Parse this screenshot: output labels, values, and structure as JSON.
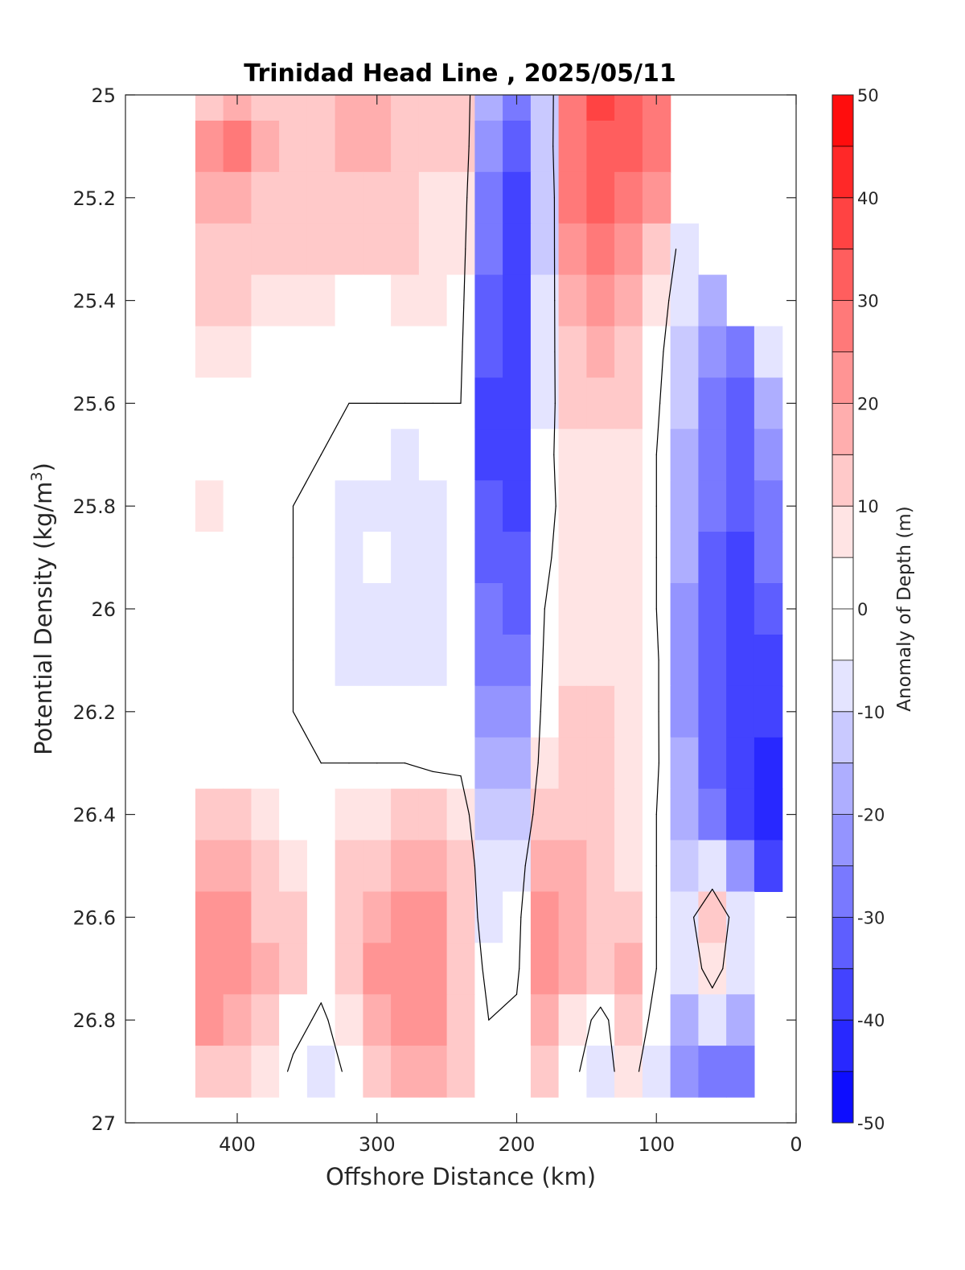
{
  "chart_data": {
    "type": "heatmap",
    "subtype": "filled-contour",
    "title": "Trinidad Head Line , 2025/05/11",
    "xlabel": "Offshore Distance (km)",
    "ylabel": "Potential Density (kg/m",
    "ylabel_sup": "3",
    "ylabel_end": ")",
    "colorbar_label": "Anomaly of Depth (m)",
    "xlim": [
      480,
      0
    ],
    "x_reversed": true,
    "ylim": [
      25,
      27
    ],
    "y_reversed": true,
    "xticks": [
      400,
      300,
      200,
      100,
      0
    ],
    "xtick_labels": [
      "400",
      "300",
      "200",
      "100",
      "0"
    ],
    "yticks": [
      25,
      25.2,
      25.4,
      25.6,
      25.8,
      26,
      26.2,
      26.4,
      26.6,
      26.8,
      27
    ],
    "ytick_labels": [
      "25",
      "25.2",
      "25.4",
      "25.6",
      "25.8",
      "26",
      "26.2",
      "26.4",
      "26.6",
      "26.8",
      "27"
    ],
    "clim": [
      -50,
      50
    ],
    "contour_step": 5,
    "colorbar_ticks": [
      50,
      40,
      30,
      20,
      10,
      0,
      -10,
      -20,
      -30,
      -40,
      -50
    ],
    "colorbar_tick_labels": [
      "50",
      "40",
      "30",
      "20",
      "10",
      "0",
      "-10",
      "-20",
      "-30",
      "-40",
      "-50"
    ],
    "colormap": {
      "negative_end": "#0000ff",
      "zero": "#ffffff",
      "positive_end": "#ff0000"
    },
    "zero_contour_color": "#000000",
    "grid": false,
    "data_extent": {
      "x": [
        420,
        20
      ],
      "y": [
        25,
        26.9
      ]
    },
    "x": [
      420,
      400,
      380,
      360,
      340,
      320,
      300,
      280,
      260,
      240,
      220,
      200,
      180,
      160,
      140,
      120,
      100,
      80,
      60,
      40,
      20
    ],
    "y": [
      25,
      25.1,
      25.2,
      25.3,
      25.4,
      25.5,
      25.6,
      25.7,
      25.8,
      25.9,
      26,
      26.1,
      26.2,
      26.3,
      26.4,
      26.5,
      26.6,
      26.7,
      26.8,
      26.9
    ],
    "z": [
      [
        14,
        18,
        14,
        12,
        14,
        16,
        18,
        14,
        10,
        10,
        -20,
        -30,
        -12,
        26,
        36,
        32,
        25,
        null,
        null,
        null,
        null
      ],
      [
        20,
        25,
        16,
        12,
        14,
        18,
        18,
        14,
        10,
        10,
        -24,
        -32,
        -12,
        28,
        34,
        30,
        25,
        null,
        null,
        null,
        null
      ],
      [
        16,
        18,
        14,
        12,
        12,
        14,
        14,
        12,
        8,
        8,
        -28,
        -36,
        -14,
        26,
        30,
        26,
        20,
        null,
        null,
        null,
        null
      ],
      [
        12,
        14,
        12,
        10,
        10,
        10,
        10,
        10,
        6,
        6,
        -30,
        -38,
        -12,
        22,
        26,
        22,
        14,
        -6,
        null,
        null,
        null
      ],
      [
        10,
        10,
        8,
        8,
        6,
        4,
        4,
        6,
        6,
        4,
        -32,
        -38,
        -10,
        18,
        22,
        18,
        8,
        -10,
        -20,
        null,
        null
      ],
      [
        6,
        6,
        4,
        2,
        2,
        2,
        2,
        2,
        2,
        2,
        -34,
        -38,
        -8,
        14,
        16,
        14,
        4,
        -12,
        -24,
        -30,
        -8
      ],
      [
        4,
        4,
        0,
        0,
        0,
        0,
        0,
        0,
        0,
        0,
        -36,
        -38,
        -6,
        10,
        12,
        10,
        2,
        -14,
        -26,
        -32,
        -18
      ],
      [
        2,
        2,
        0,
        0,
        0,
        -2,
        -4,
        -6,
        -4,
        -2,
        -36,
        -38,
        -4,
        8,
        8,
        8,
        0,
        -16,
        -28,
        -32,
        -22
      ],
      [
        6,
        2,
        0,
        0,
        -2,
        -6,
        -6,
        -6,
        -6,
        -2,
        -34,
        -36,
        -4,
        6,
        6,
        6,
        0,
        -18,
        -30,
        -34,
        -26
      ],
      [
        4,
        2,
        0,
        0,
        -2,
        -6,
        -4,
        -6,
        -6,
        -2,
        -32,
        -34,
        -2,
        6,
        6,
        6,
        0,
        -20,
        -32,
        -38,
        -30
      ],
      [
        2,
        2,
        0,
        0,
        -2,
        -6,
        -6,
        -6,
        -6,
        -2,
        -30,
        -32,
        0,
        6,
        6,
        6,
        0,
        -22,
        -34,
        -40,
        -34
      ],
      [
        2,
        2,
        0,
        0,
        -2,
        -6,
        -6,
        -6,
        -6,
        -2,
        -26,
        -28,
        2,
        8,
        8,
        8,
        2,
        -22,
        -34,
        -40,
        -38
      ],
      [
        2,
        2,
        0,
        0,
        -2,
        -2,
        -2,
        -2,
        -4,
        -2,
        -22,
        -24,
        4,
        10,
        10,
        8,
        2,
        -22,
        -34,
        -40,
        -40
      ],
      [
        4,
        4,
        2,
        0,
        0,
        0,
        0,
        0,
        -2,
        -2,
        -18,
        -20,
        6,
        10,
        10,
        8,
        2,
        -20,
        -34,
        -40,
        -42
      ],
      [
        12,
        10,
        8,
        4,
        2,
        6,
        8,
        10,
        10,
        6,
        -14,
        -14,
        10,
        14,
        12,
        8,
        0,
        -18,
        -30,
        -36,
        -42
      ],
      [
        18,
        16,
        12,
        8,
        4,
        10,
        14,
        18,
        18,
        10,
        -10,
        -8,
        18,
        16,
        12,
        8,
        0,
        -12,
        -10,
        -24,
        -40
      ],
      [
        22,
        20,
        14,
        10,
        4,
        12,
        18,
        22,
        22,
        12,
        -8,
        -4,
        22,
        18,
        12,
        12,
        0,
        -6,
        12,
        -8,
        null
      ],
      [
        24,
        22,
        16,
        10,
        4,
        12,
        20,
        24,
        24,
        14,
        -4,
        -2,
        20,
        18,
        12,
        18,
        0,
        -10,
        6,
        -10,
        null
      ],
      [
        20,
        18,
        12,
        4,
        -2,
        6,
        16,
        22,
        22,
        12,
        0,
        2,
        16,
        8,
        -4,
        10,
        -4,
        -16,
        -10,
        -20,
        null
      ],
      [
        14,
        12,
        8,
        -2,
        -6,
        2,
        12,
        18,
        18,
        10,
        2,
        4,
        12,
        2,
        -6,
        6,
        -10,
        -24,
        -28,
        -28,
        null
      ]
    ]
  }
}
